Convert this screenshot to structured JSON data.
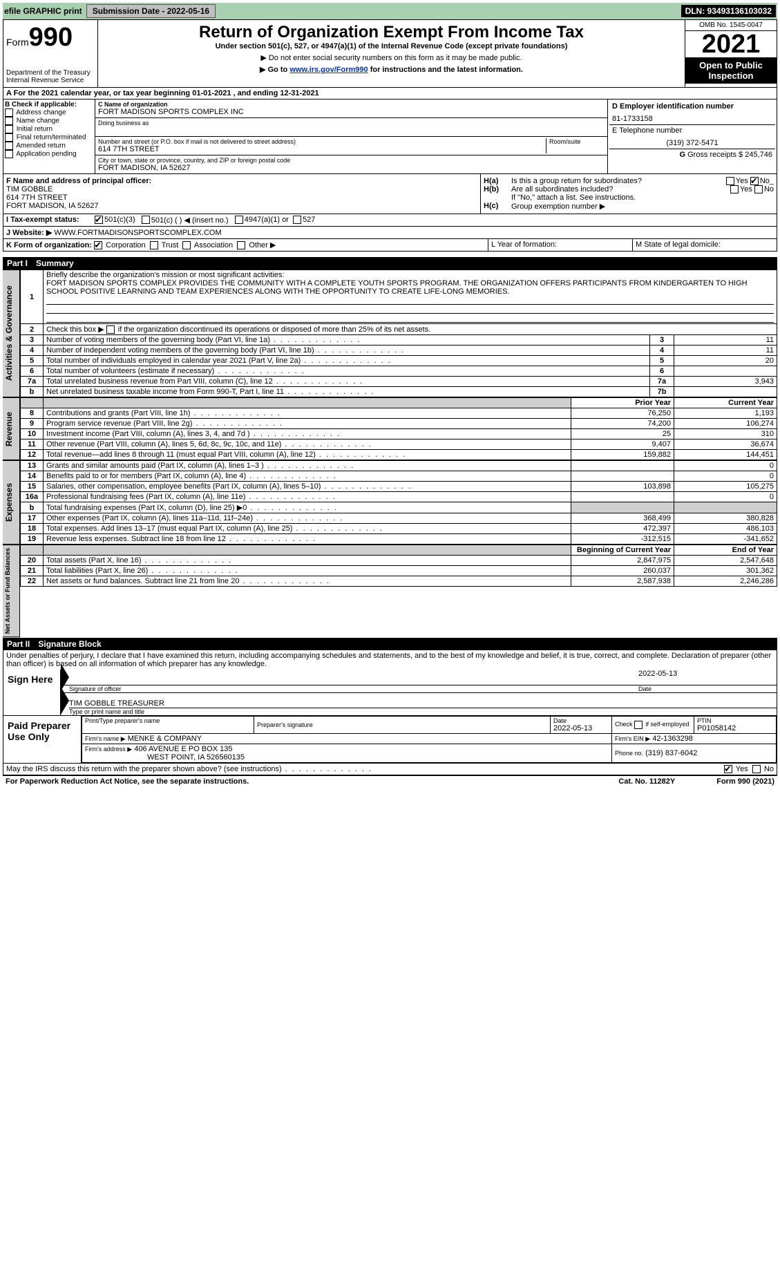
{
  "top": {
    "efile": "efile GRAPHIC print",
    "submission_label": "Submission Date - 2022-05-16",
    "dln": "DLN: 93493136103032"
  },
  "header": {
    "form_prefix": "Form",
    "form_number": "990",
    "dept": "Department of the Treasury",
    "irs": "Internal Revenue Service",
    "title": "Return of Organization Exempt From Income Tax",
    "subtitle": "Under section 501(c), 527, or 4947(a)(1) of the Internal Revenue Code (except private foundations)",
    "note1": "Do not enter social security numbers on this form as it may be made public.",
    "note2_pre": "Go to ",
    "note2_link": "www.irs.gov/Form990",
    "note2_post": " for instructions and the latest information.",
    "omb": "OMB No. 1545-0047",
    "year": "2021",
    "open": "Open to Public Inspection"
  },
  "A": {
    "text": "For the 2021 calendar year, or tax year beginning 01-01-2021    , and ending 12-31-2021"
  },
  "B": {
    "label": "B Check if applicable:",
    "items": [
      "Address change",
      "Name change",
      "Initial return",
      "Final return/terminated",
      "Amended return",
      "Application pending"
    ]
  },
  "C": {
    "label": "C Name of organization",
    "name": "FORT MADISON SPORTS COMPLEX INC",
    "dba_label": "Doing business as",
    "street_label": "Number and street (or P.O. box if mail is not delivered to street address)",
    "room_label": "Room/suite",
    "street": "614 7TH STREET",
    "city_label": "City or town, state or province, country, and ZIP or foreign postal code",
    "city": "FORT MADISON, IA  52627"
  },
  "D": {
    "label": "D Employer identification number",
    "ein": "81-1733158"
  },
  "E": {
    "label": "E Telephone number",
    "tel": "(319) 372-5471"
  },
  "G": {
    "label": "G",
    "text": "Gross receipts $ 245,746"
  },
  "F": {
    "label": "F  Name and address of principal officer:",
    "name": "TIM GOBBLE",
    "street": "614 7TH STREET",
    "city": "FORT MADISON, IA  52627"
  },
  "H": {
    "a": "Is this a group return for subordinates?",
    "b": "Are all subordinates included?",
    "b_note": "If \"No,\" attach a list. See instructions.",
    "c": "Group exemption number ▶",
    "yes": "Yes",
    "no": "No"
  },
  "I": {
    "label": "I   Tax-exempt status:",
    "opts": [
      "501(c)(3)",
      "501(c) (  ) ◀ (insert no.)",
      "4947(a)(1) or",
      "527"
    ]
  },
  "J": {
    "label": "J    Website: ▶",
    "site": "WWW.FORTMADISONSPORTSCOMPLEX.COM"
  },
  "K": {
    "label": "K Form of organization:",
    "opts": [
      "Corporation",
      "Trust",
      "Association",
      "Other ▶"
    ]
  },
  "L": {
    "label": "L Year of formation:"
  },
  "M": {
    "label": "M State of legal domicile:"
  },
  "partI": {
    "label": "Part I",
    "title": "Summary"
  },
  "summary": {
    "l1_label": "Briefly describe the organization's mission or most significant activities:",
    "l1_text": "FORT MADISON SPORTS COMPLEX PROVIDES THE COMMUNITY WITH A COMPLETE YOUTH SPORTS PROGRAM. THE ORGANIZATION OFFERS PARTICIPANTS FROM KINDERGARTEN TO HIGH SCHOOL POSITIVE LEARNING AND TEAM EXPERIENCES ALONG WITH THE OPPORTUNITY TO CREATE LIFE-LONG MEMORIES.",
    "l2": "Check this box ▶     if the organization discontinued its operations or disposed of more than 25% of its net assets.",
    "rows_single": [
      {
        "n": "3",
        "t": "Number of voting members of the governing body (Part VI, line 1a)",
        "c": "3",
        "v": "11"
      },
      {
        "n": "4",
        "t": "Number of independent voting members of the governing body (Part VI, line 1b)",
        "c": "4",
        "v": "11"
      },
      {
        "n": "5",
        "t": "Total number of individuals employed in calendar year 2021 (Part V, line 2a)",
        "c": "5",
        "v": "20"
      },
      {
        "n": "6",
        "t": "Total number of volunteers (estimate if necessary)",
        "c": "6",
        "v": ""
      },
      {
        "n": "7a",
        "t": "Total unrelated business revenue from Part VIII, column (C), line 12",
        "c": "7a",
        "v": "3,943"
      },
      {
        "n": "b",
        "t": "Net unrelated business taxable income from Form 990-T, Part I, line 11",
        "c": "7b",
        "v": ""
      }
    ],
    "hdr_prior": "Prior Year",
    "hdr_curr": "Current Year",
    "revenue": [
      {
        "n": "8",
        "t": "Contributions and grants (Part VIII, line 1h)",
        "p": "76,250",
        "c": "1,193"
      },
      {
        "n": "9",
        "t": "Program service revenue (Part VIII, line 2g)",
        "p": "74,200",
        "c": "106,274"
      },
      {
        "n": "10",
        "t": "Investment income (Part VIII, column (A), lines 3, 4, and 7d )",
        "p": "25",
        "c": "310"
      },
      {
        "n": "11",
        "t": "Other revenue (Part VIII, column (A), lines 5, 6d, 8c, 9c, 10c, and 11e)",
        "p": "9,407",
        "c": "36,674"
      },
      {
        "n": "12",
        "t": "Total revenue—add lines 8 through 11 (must equal Part VIII, column (A), line 12)",
        "p": "159,882",
        "c": "144,451"
      }
    ],
    "expenses": [
      {
        "n": "13",
        "t": "Grants and similar amounts paid (Part IX, column (A), lines 1–3 )",
        "p": "",
        "c": "0"
      },
      {
        "n": "14",
        "t": "Benefits paid to or for members (Part IX, column (A), line 4)",
        "p": "",
        "c": "0"
      },
      {
        "n": "15",
        "t": "Salaries, other compensation, employee benefits (Part IX, column (A), lines 5–10)",
        "p": "103,898",
        "c": "105,275"
      },
      {
        "n": "16a",
        "t": "Professional fundraising fees (Part IX, column (A), line 11e)",
        "p": "",
        "c": "0"
      },
      {
        "n": "b",
        "t": "Total fundraising expenses (Part IX, column (D), line 25) ▶0",
        "p": "SHADE",
        "c": "SHADE"
      },
      {
        "n": "17",
        "t": "Other expenses (Part IX, column (A), lines 11a–11d, 11f–24e)",
        "p": "368,499",
        "c": "380,828"
      },
      {
        "n": "18",
        "t": "Total expenses. Add lines 13–17 (must equal Part IX, column (A), line 25)",
        "p": "472,397",
        "c": "486,103"
      },
      {
        "n": "19",
        "t": "Revenue less expenses. Subtract line 18 from line 12",
        "p": "-312,515",
        "c": "-341,652"
      }
    ],
    "hdr_beg": "Beginning of Current Year",
    "hdr_end": "End of Year",
    "net": [
      {
        "n": "20",
        "t": "Total assets (Part X, line 16)",
        "p": "2,847,975",
        "c": "2,547,648"
      },
      {
        "n": "21",
        "t": "Total liabilities (Part X, line 26)",
        "p": "260,037",
        "c": "301,362"
      },
      {
        "n": "22",
        "t": "Net assets or fund balances. Subtract line 21 from line 20",
        "p": "2,587,938",
        "c": "2,246,286"
      }
    ]
  },
  "vtabs": {
    "gov": "Activities & Governance",
    "rev": "Revenue",
    "exp": "Expenses",
    "net": "Net Assets or Fund Balances"
  },
  "partII": {
    "label": "Part II",
    "title": "Signature Block"
  },
  "sig": {
    "penalty": "Under penalties of perjury, I declare that I have examined this return, including accompanying schedules and statements, and to the best of my knowledge and belief, it is true, correct, and complete. Declaration of preparer (other than officer) is based on all information of which preparer has any knowledge.",
    "sign_here": "Sign Here",
    "sig_officer": "Signature of officer",
    "date": "Date",
    "date_val": "2022-05-13",
    "name": "TIM GOBBLE  TREASURER",
    "name_label": "Type or print name and title",
    "paid": "Paid Preparer Use Only",
    "p_name_label": "Print/Type preparer's name",
    "p_sig_label": "Preparer's signature",
    "p_date_label": "Date",
    "p_date": "2022-05-13",
    "check_self": "Check        if self-employed",
    "ptin_label": "PTIN",
    "ptin": "P01058142",
    "firm_name_label": "Firm's name    ▶",
    "firm_name": "MENKE & COMPANY",
    "firm_ein_label": "Firm's EIN ▶",
    "firm_ein": "42-1363298",
    "firm_addr_label": "Firm's address ▶",
    "firm_addr1": "406 AVENUE E PO BOX 135",
    "firm_addr2": "WEST POINT, IA  526560135",
    "phone_label": "Phone no.",
    "phone": "(319) 837-6042",
    "may_irs": "May the IRS discuss this return with the preparer shown above? (see instructions)"
  },
  "footer": {
    "pra": "For Paperwork Reduction Act Notice, see the separate instructions.",
    "cat": "Cat. No. 11282Y",
    "form": "Form 990 (2021)"
  }
}
